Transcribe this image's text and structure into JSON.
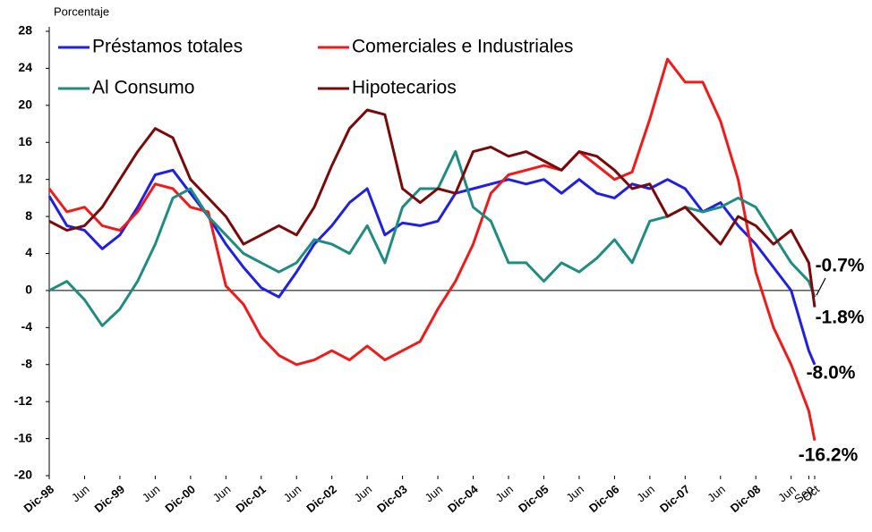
{
  "chart_data": {
    "type": "line",
    "y_label": "Porcentaje",
    "xlim": [
      0,
      130
    ],
    "ylim": [
      -20,
      28
    ],
    "yticks": [
      -20,
      -16,
      -12,
      -8,
      -4,
      0,
      4,
      8,
      12,
      16,
      20,
      24,
      28
    ],
    "xticks": [
      {
        "value": 0,
        "label": "Dic-98"
      },
      {
        "value": 6,
        "label": "Jun"
      },
      {
        "value": 12,
        "label": "Dic-99"
      },
      {
        "value": 18,
        "label": "Jun"
      },
      {
        "value": 24,
        "label": "Dic-00"
      },
      {
        "value": 30,
        "label": "Jun"
      },
      {
        "value": 36,
        "label": "Dic-01"
      },
      {
        "value": 42,
        "label": "Jun"
      },
      {
        "value": 48,
        "label": "Dic-02"
      },
      {
        "value": 54,
        "label": "Jun"
      },
      {
        "value": 60,
        "label": "Dic-03"
      },
      {
        "value": 66,
        "label": "Jun"
      },
      {
        "value": 72,
        "label": "Dic-04"
      },
      {
        "value": 78,
        "label": "Jun"
      },
      {
        "value": 84,
        "label": "Dic-05"
      },
      {
        "value": 90,
        "label": "Jun"
      },
      {
        "value": 96,
        "label": "Dic-06"
      },
      {
        "value": 102,
        "label": "Jun"
      },
      {
        "value": 108,
        "label": "Dic-07"
      },
      {
        "value": 114,
        "label": "Jun"
      },
      {
        "value": 120,
        "label": "Dic-08"
      },
      {
        "value": 126,
        "label": "Jun"
      },
      {
        "value": 129,
        "label": "Sep"
      },
      {
        "value": 130,
        "label": "Oct"
      }
    ],
    "x": [
      0,
      3,
      6,
      9,
      12,
      15,
      18,
      21,
      24,
      27,
      30,
      33,
      36,
      39,
      42,
      45,
      48,
      51,
      54,
      57,
      60,
      63,
      66,
      69,
      72,
      75,
      78,
      81,
      84,
      87,
      90,
      93,
      96,
      99,
      102,
      105,
      108,
      111,
      114,
      117,
      120,
      123,
      126,
      129,
      130
    ],
    "series": [
      {
        "name": "Préstamos totales",
        "color": "#1f1fe6",
        "values": [
          10.2,
          7,
          6.5,
          4.5,
          6,
          9,
          12.5,
          13,
          10.5,
          8,
          5,
          2.5,
          0.3,
          -0.7,
          2,
          5,
          7,
          9.5,
          11,
          6,
          7.3,
          7,
          7.5,
          10.5,
          11,
          11.5,
          12,
          11.5,
          12,
          10.5,
          12,
          10.5,
          10,
          11.5,
          11,
          12,
          11,
          8.5,
          9.5,
          7,
          5,
          2.5,
          0,
          -6.5,
          -8.0
        ],
        "value_labels": [
          null,
          null,
          null,
          null,
          null,
          null,
          null,
          null,
          null,
          null,
          null,
          null,
          null,
          null,
          null,
          null,
          null,
          null,
          null,
          null,
          null,
          null,
          null,
          null,
          null,
          null,
          null,
          null,
          null,
          null,
          null,
          null,
          null,
          null,
          null,
          null,
          null,
          null,
          null,
          null,
          null,
          null,
          null,
          null,
          "-8.0%"
        ]
      },
      {
        "name": "Comerciales e Industriales",
        "color": "#f01a1a",
        "values": [
          11,
          8.5,
          9,
          7,
          6.5,
          8.5,
          11.5,
          11,
          9,
          8.5,
          0.5,
          -1.5,
          -5,
          -7,
          -8,
          -7.5,
          -6.5,
          -7.5,
          -6,
          -7.5,
          -6.5,
          -5.5,
          -2,
          1,
          5,
          10.5,
          12.5,
          13,
          13.5,
          13,
          15,
          13.5,
          12,
          12.8,
          18.5,
          25,
          22.5,
          22.5,
          18.3,
          12,
          2,
          -4,
          -8,
          -13,
          -16.2
        ],
        "value_labels": [
          null,
          null,
          null,
          null,
          null,
          null,
          null,
          null,
          null,
          null,
          null,
          null,
          null,
          null,
          null,
          null,
          null,
          null,
          null,
          null,
          null,
          null,
          null,
          null,
          null,
          null,
          null,
          null,
          null,
          null,
          null,
          null,
          null,
          null,
          null,
          null,
          null,
          null,
          null,
          null,
          null,
          null,
          null,
          null,
          "-16.2%"
        ]
      },
      {
        "name": "Al Consumo",
        "color": "#1f8c80",
        "values": [
          0,
          1,
          -1,
          -3.8,
          -2,
          1,
          5,
          10,
          11,
          8,
          6,
          4,
          3,
          2,
          3,
          5.5,
          5,
          4,
          7,
          3,
          9,
          11,
          11,
          15,
          9,
          7.5,
          3,
          3,
          1,
          3,
          2,
          3.5,
          5.5,
          3,
          7.5,
          8,
          9,
          8.5,
          9,
          10,
          9,
          6,
          3,
          1,
          -0.7
        ],
        "value_labels": [
          null,
          null,
          null,
          null,
          null,
          null,
          null,
          null,
          null,
          null,
          null,
          null,
          null,
          null,
          null,
          null,
          null,
          null,
          null,
          null,
          null,
          null,
          null,
          null,
          null,
          null,
          null,
          null,
          null,
          null,
          null,
          null,
          null,
          null,
          null,
          null,
          null,
          null,
          null,
          null,
          null,
          null,
          null,
          null,
          "-0.7%"
        ]
      },
      {
        "name": "Hipotecarios",
        "color": "#7a0a0a",
        "values": [
          7.5,
          6.5,
          7,
          9,
          12,
          15,
          17.5,
          16.5,
          12,
          10,
          8,
          5,
          6,
          7,
          6,
          9,
          13.5,
          17.5,
          19.5,
          19,
          11,
          9.5,
          11,
          10.5,
          15,
          15.5,
          14.5,
          15,
          14,
          13,
          15,
          14.5,
          13,
          11,
          11.5,
          8,
          9,
          7,
          5,
          8,
          7,
          5,
          6.5,
          3,
          -1.8
        ],
        "value_labels": [
          null,
          null,
          null,
          null,
          null,
          null,
          null,
          null,
          null,
          null,
          null,
          null,
          null,
          null,
          null,
          null,
          null,
          null,
          null,
          null,
          null,
          null,
          null,
          null,
          null,
          null,
          null,
          null,
          null,
          null,
          null,
          null,
          null,
          null,
          null,
          null,
          null,
          null,
          null,
          null,
          null,
          null,
          null,
          null,
          "-1.8%"
        ]
      }
    ]
  }
}
